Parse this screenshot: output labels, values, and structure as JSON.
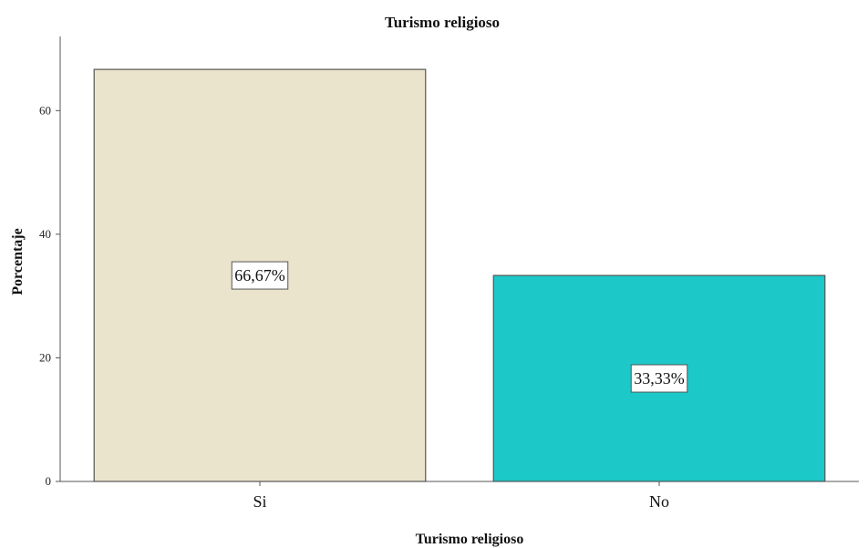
{
  "chart_data": {
    "type": "bar",
    "title": "Turismo religioso",
    "xlabel": "Turismo religioso",
    "ylabel": "Porcentaje",
    "categories": [
      "Si",
      "No"
    ],
    "values": [
      66.67,
      33.33
    ],
    "data_labels": [
      "66,67%",
      "33,33%"
    ],
    "colors": [
      "#ebe4cc",
      "#1cc8c8"
    ],
    "ylim": [
      0,
      72
    ],
    "yticks": [
      0,
      20,
      40,
      60
    ],
    "grid": false,
    "legend": "none"
  }
}
